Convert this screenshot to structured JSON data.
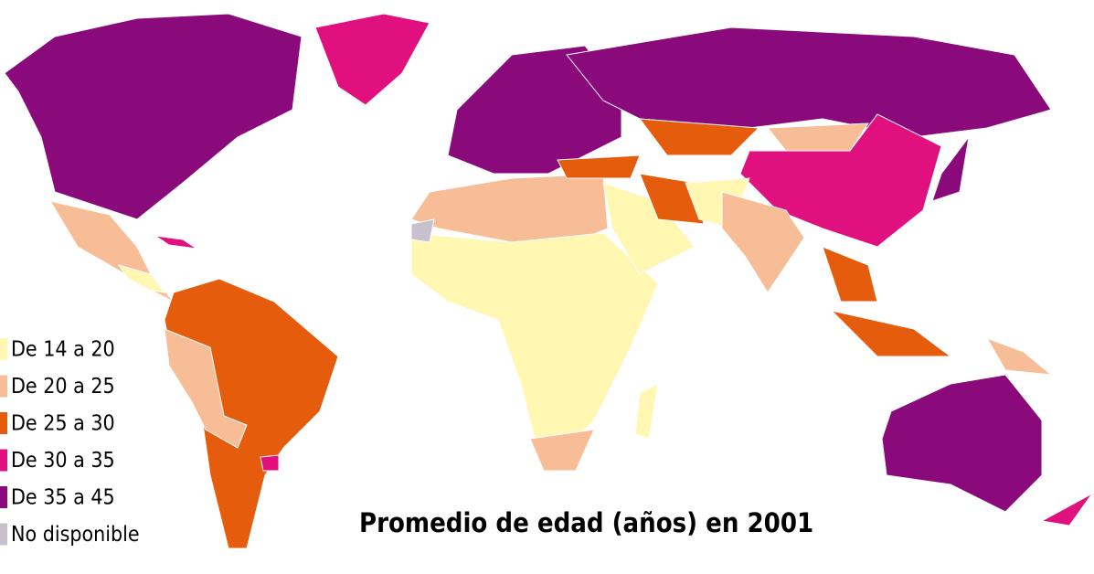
{
  "title": "Promedio de edad (años) en 2001",
  "legend": [
    {
      "label": "De 14 a 20",
      "color": "#fff7b2"
    },
    {
      "label": "De 20 a 25",
      "color": "#f7bd96"
    },
    {
      "label": "De 25 a 30",
      "color": "#e55d0c"
    },
    {
      "label": "De 30 a 35",
      "color": "#e0117f"
    },
    {
      "label": "De 35 a 45",
      "color": "#8a0a7c"
    },
    {
      "label": "No disponible",
      "color": "#c8c0cc"
    }
  ]
}
